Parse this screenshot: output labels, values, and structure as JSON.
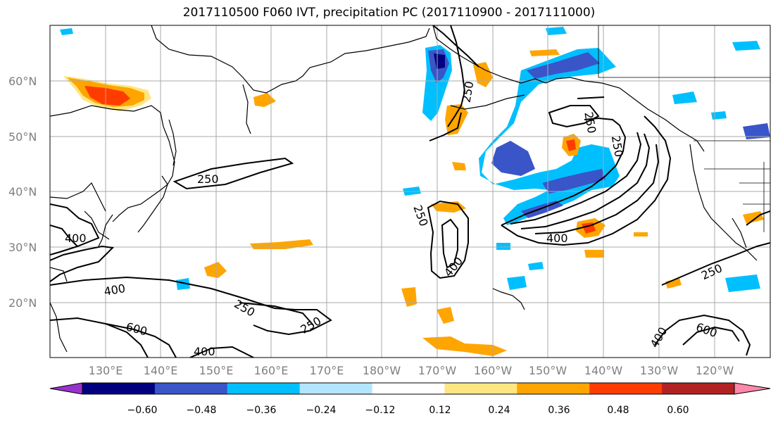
{
  "title": "2017110500 F060 IVT, precipitation PC (2017110900 - 2017111000)",
  "map": {
    "lon_labels": [
      "130°E",
      "140°E",
      "150°E",
      "160°E",
      "170°E",
      "180°W",
      "170°W",
      "160°W",
      "150°W",
      "140°W",
      "130°W",
      "120°W"
    ],
    "lat_labels": [
      "60°N",
      "50°N",
      "40°N",
      "30°N",
      "20°N"
    ],
    "contour_levels": [
      "250",
      "400",
      "600"
    ],
    "contour_labels": [
      "250",
      "250",
      "250",
      "250",
      "250",
      "250",
      "250",
      "250",
      "400",
      "400",
      "400",
      "400",
      "400",
      "400",
      "600",
      "600"
    ]
  },
  "colorbar": {
    "ticks": [
      "−0.60",
      "−0.48",
      "−0.36",
      "−0.24",
      "−0.12",
      "0.12",
      "0.24",
      "0.36",
      "0.48",
      "0.60"
    ],
    "colors": [
      "#9933cc",
      "#000080",
      "#3a55c8",
      "#00bfff",
      "#b3e5ff",
      "#ffffff",
      "#ffe680",
      "#ffa500",
      "#ff3c00",
      "#b22222",
      "#ff88aa"
    ]
  }
}
